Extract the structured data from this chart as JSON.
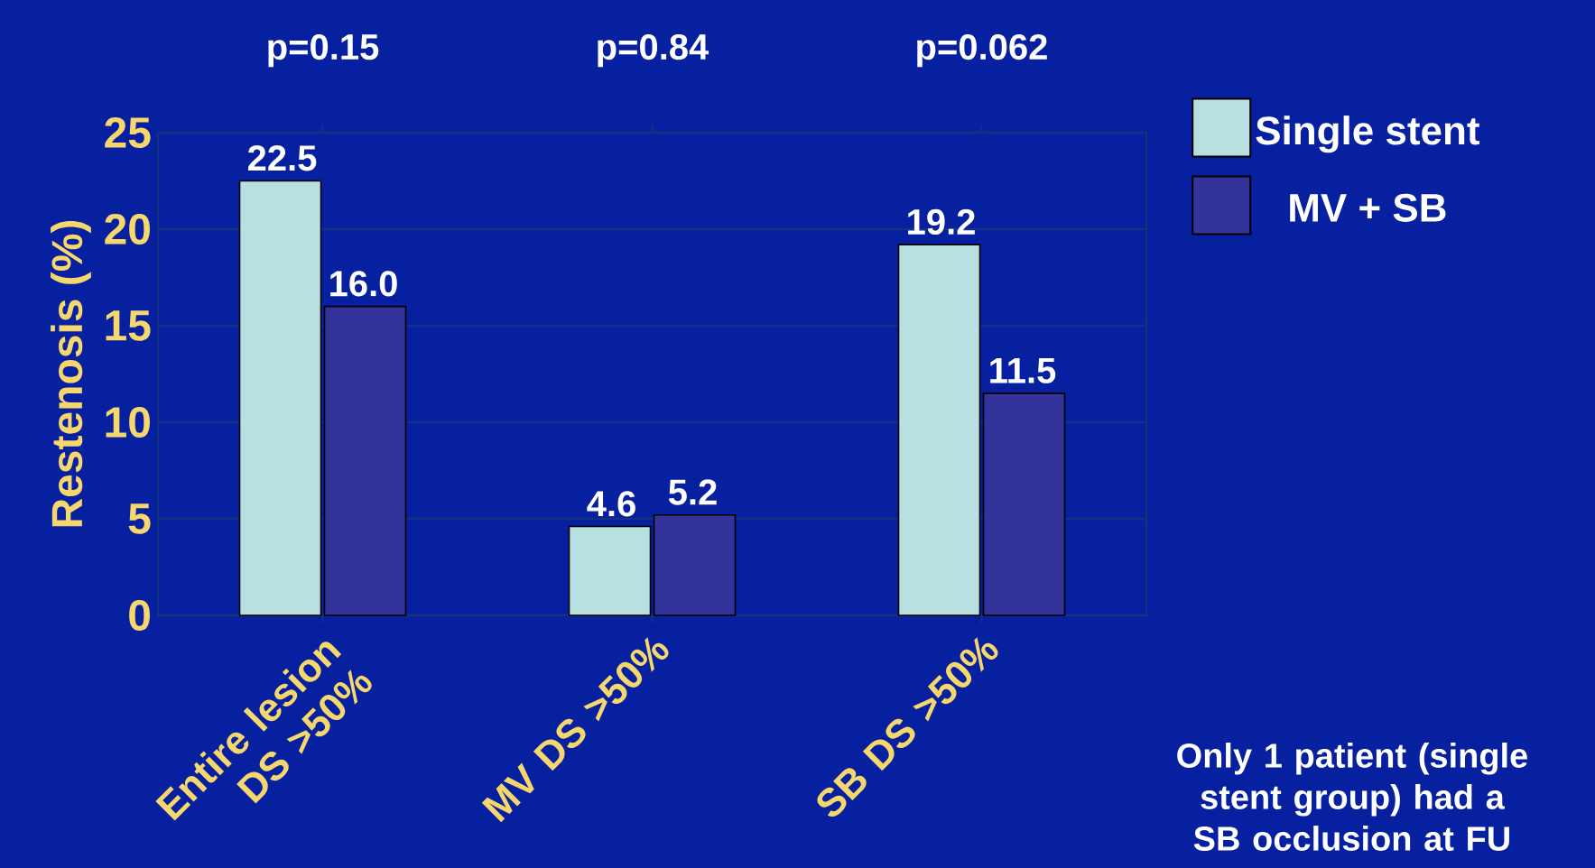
{
  "chart_data": {
    "type": "bar",
    "ylabel": "Restenosis (%)",
    "categories": [
      "Entire lesion DS >50%",
      "MV DS >50%",
      "SB DS >50%"
    ],
    "series": [
      {
        "name": "Single stent",
        "color": "#b9e0e0",
        "values": [
          22.5,
          4.6,
          19.2
        ]
      },
      {
        "name": "MV + SB",
        "color": "#333399",
        "values": [
          16.0,
          5.2,
          11.5
        ]
      }
    ],
    "value_labels": [
      [
        "22.5",
        "4.6",
        "19.2"
      ],
      [
        "16.0",
        "5.2",
        "11.5"
      ]
    ],
    "ylim": [
      0,
      25
    ],
    "yticks": [
      0,
      5,
      10,
      15,
      20,
      25
    ],
    "grid": "y",
    "legend": "top right",
    "annotations": [
      "p=0.15",
      "p=0.84",
      "p=0.062",
      "Only 1 patient (single stent group) had a SB occlusion at FU"
    ]
  }
}
